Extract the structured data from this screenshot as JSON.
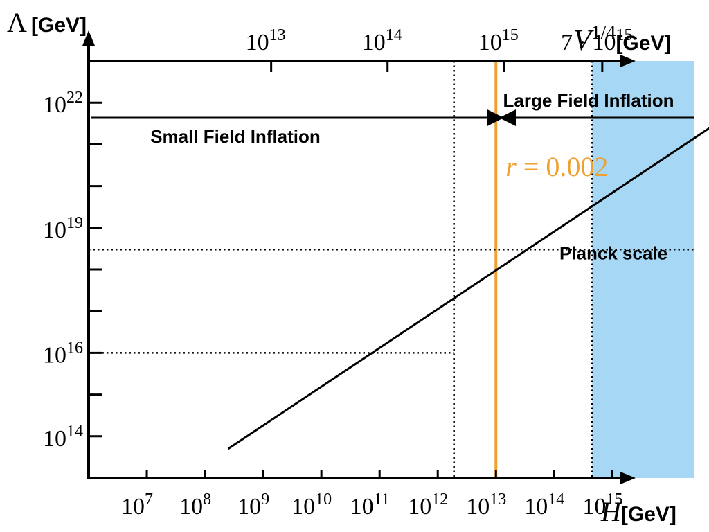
{
  "chart_data": {
    "type": "line",
    "y_axis": {
      "symbol": "Λ",
      "unit": "[GeV]",
      "scale": "log",
      "tick_exponents": [
        14,
        16,
        19,
        22
      ],
      "lim_exponent": [
        13.0,
        23.0
      ]
    },
    "x_axis": {
      "symbol": "H",
      "unit": "[GeV]",
      "scale": "log",
      "tick_exponents": [
        7,
        8,
        9,
        10,
        11,
        12,
        13,
        14,
        15
      ],
      "lim_exponent": [
        6.0,
        16.4
      ]
    },
    "top_axis": {
      "symbol": "V",
      "superscript": "1/4",
      "unit": "[GeV]",
      "scale": "log",
      "ticks": [
        {
          "mantissa": "",
          "exponent": "13",
          "value": 10000000000000.0
        },
        {
          "mantissa": "",
          "exponent": "14",
          "value": 100000000000000.0
        },
        {
          "mantissa": "",
          "exponent": "15",
          "value": 1000000000000000.0
        },
        {
          "mantissa": "7 · ",
          "exponent": "15",
          "value": 7000000000000000.0
        }
      ]
    },
    "series": [
      {
        "x": [
          250000000.0,
          1e+17
        ],
        "y": [
          50000000000000.0,
          5e+21
        ]
      }
    ],
    "vertical_lines": [
      {
        "x": 1900000000000.0,
        "style": "dotted"
      },
      {
        "x": 10000000000000.0,
        "style": "solid",
        "color": "#f0a030"
      },
      {
        "x": 450000000000000.0,
        "style": "dotted"
      }
    ],
    "horizontal_lines": [
      {
        "y": 1e+16,
        "x_end": 1900000000000.0,
        "style": "dotted"
      },
      {
        "y": 3e+18,
        "style": "dotted"
      }
    ],
    "shaded_region": {
      "x_from": 450000000000000.0,
      "color": "#a6d8f5"
    },
    "arrows": [
      {
        "label": "Small Field Inflation",
        "direction": "right",
        "x_from": 1000000.0,
        "x_to": 12000000000000.0
      },
      {
        "label": "Large Field Inflation",
        "direction": "left",
        "x_from": 2.2e+17,
        "x_to": 13000000000000.0
      }
    ],
    "annotations": {
      "r_label": "r = 0.002",
      "r_color": "#f0a030",
      "planck_label": "Planck scale"
    },
    "grid": false
  }
}
